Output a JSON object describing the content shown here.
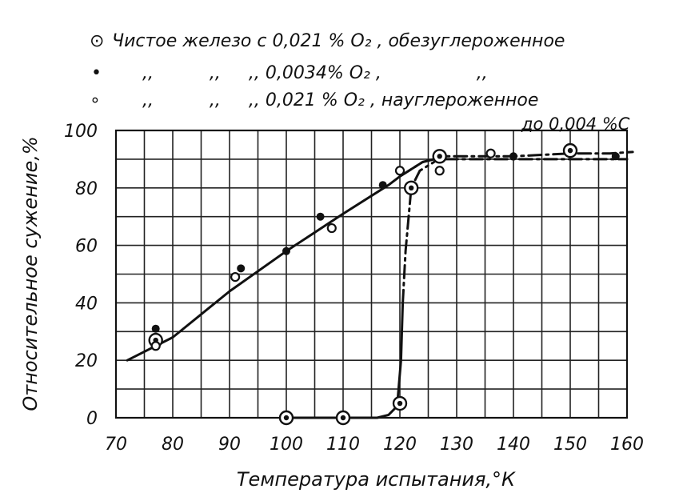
{
  "chart_data": {
    "type": "scatter",
    "title": "",
    "xlabel": "Температура испытания,°К",
    "ylabel": "Относительное сужение,%",
    "xlim": [
      70,
      160
    ],
    "ylim": [
      0,
      100
    ],
    "x_ticks": [
      "70",
      "80",
      "90",
      "100",
      "110",
      "120",
      "130",
      "140",
      "150",
      "160"
    ],
    "y_ticks": [
      "0",
      "20",
      "40",
      "60",
      "80",
      "100"
    ],
    "grid": true,
    "legend_position": "top",
    "legend": [
      {
        "marker": "⊙",
        "text": "Чистое железо с 0,021 % O₂ , обезуглероженное"
      },
      {
        "marker": "•",
        "text": ",,          ,,     ,, 0,0034% O₂ ,                 ,,"
      },
      {
        "marker": "∘",
        "text": ",,          ,,     ,, 0,021 % O₂ , науглероженное"
      }
    ],
    "legend_note": "до 0,004 %С",
    "series": [
      {
        "marker": "circle-dot",
        "points": [
          [
            77,
            27
          ],
          [
            100,
            0
          ],
          [
            110,
            0
          ],
          [
            120,
            5
          ],
          [
            122,
            80
          ],
          [
            127,
            91
          ],
          [
            150,
            93
          ]
        ]
      },
      {
        "marker": "filled",
        "points": [
          [
            77,
            31
          ],
          [
            92,
            52
          ],
          [
            100,
            58
          ],
          [
            106,
            70
          ],
          [
            117,
            81
          ],
          [
            140,
            91
          ],
          [
            158,
            91
          ]
        ]
      },
      {
        "marker": "open",
        "points": [
          [
            77,
            25
          ],
          [
            91,
            49
          ],
          [
            108,
            66
          ],
          [
            120,
            86
          ],
          [
            127,
            86
          ],
          [
            136,
            92
          ]
        ]
      }
    ],
    "curves": [
      {
        "style": "solid",
        "points": [
          [
            72,
            20
          ],
          [
            80,
            28
          ],
          [
            90,
            44
          ],
          [
            100,
            58
          ],
          [
            110,
            71
          ],
          [
            118,
            81
          ],
          [
            120,
            84
          ],
          [
            124,
            89
          ],
          [
            126,
            90
          ]
        ]
      },
      {
        "style": "dash-dot",
        "points": [
          [
            120,
            84
          ],
          [
            124,
            89
          ],
          [
            126,
            90
          ],
          [
            160,
            90
          ]
        ]
      },
      {
        "style": "solid",
        "points": [
          [
            100,
            0
          ],
          [
            110,
            0
          ],
          [
            116,
            0
          ],
          [
            118,
            1
          ],
          [
            119.5,
            4
          ],
          [
            120.2,
            20
          ],
          [
            120.5,
            40
          ]
        ]
      },
      {
        "style": "dash-dot",
        "points": [
          [
            120.5,
            40
          ],
          [
            121,
            58
          ],
          [
            122,
            80
          ],
          [
            123.5,
            86
          ],
          [
            126,
            89
          ],
          [
            127,
            91
          ],
          [
            140,
            91
          ],
          [
            150,
            92
          ],
          [
            157,
            92
          ],
          [
            161,
            92.5
          ]
        ]
      }
    ]
  }
}
